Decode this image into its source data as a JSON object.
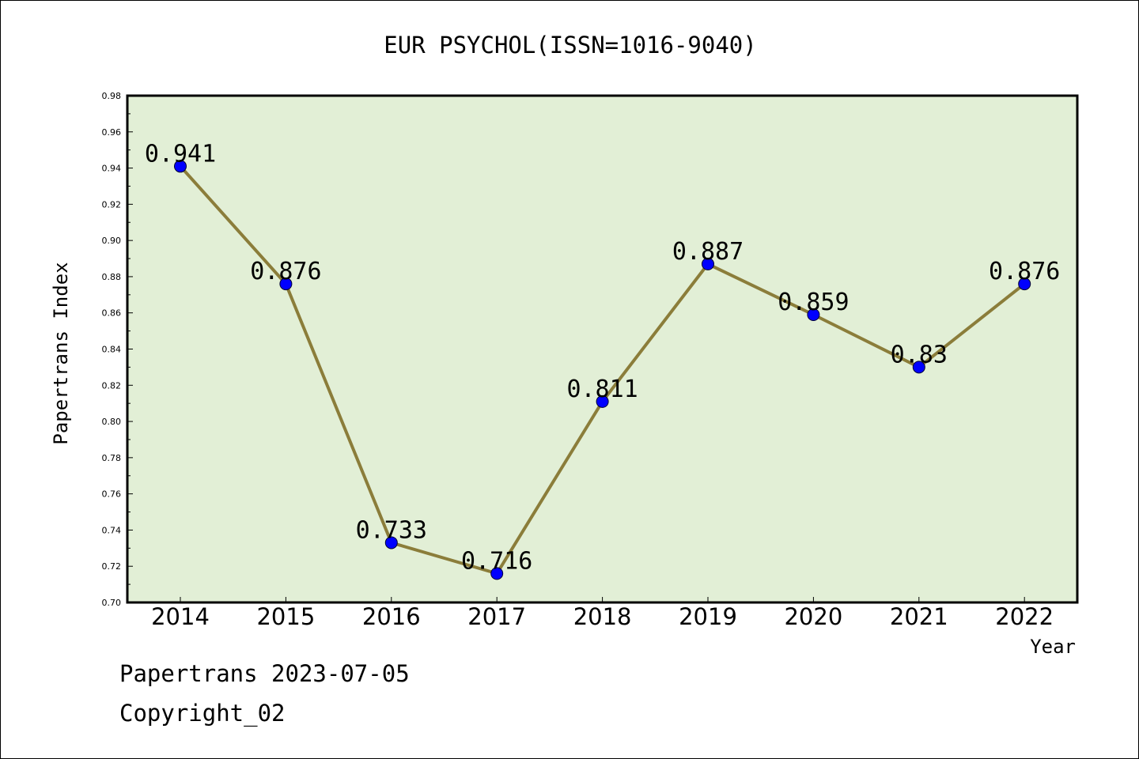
{
  "chart_data": {
    "type": "line",
    "title": "EUR PSYCHOL(ISSN=1016-9040)",
    "xlabel": "Year",
    "ylabel": "Papertrans Index",
    "categories": [
      "2014",
      "2015",
      "2016",
      "2017",
      "2018",
      "2019",
      "2020",
      "2021",
      "2022"
    ],
    "series": [
      {
        "values": [
          0.941,
          0.876,
          0.733,
          0.716,
          0.811,
          0.887,
          0.859,
          0.83,
          0.876
        ]
      }
    ],
    "data_labels": [
      "0.941",
      "0.876",
      "0.733",
      "0.716",
      "0.811",
      "0.887",
      "0.859",
      "0.83",
      "0.876"
    ],
    "ylim": [
      0.7,
      0.98
    ],
    "yticks": [
      "0.70",
      "0.72",
      "0.74",
      "0.76",
      "0.78",
      "0.80",
      "0.82",
      "0.84",
      "0.86",
      "0.88",
      "0.90",
      "0.92",
      "0.94",
      "0.96",
      "0.98"
    ],
    "grid": false,
    "legend": "none",
    "colors": {
      "plot_background": "#e2efd6",
      "line": "#8b7d3a",
      "marker": "#0000ff"
    }
  },
  "footer": {
    "line1": "Papertrans 2023-07-05",
    "line2": "Copyright_02"
  }
}
